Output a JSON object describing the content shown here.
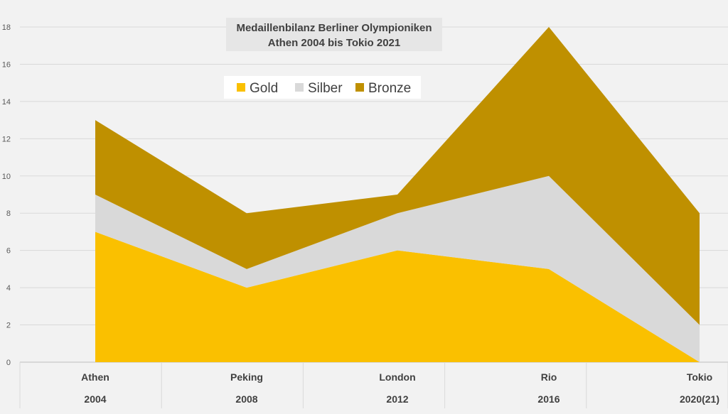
{
  "chart_data": {
    "type": "area",
    "stacked": true,
    "title_lines": [
      "Medaillenbilanz Berliner Olympioniken",
      "Athen 2004 bis Tokio 2021"
    ],
    "categories": [
      {
        "name": "Athen",
        "year": "2004"
      },
      {
        "name": "Peking",
        "year": "2008"
      },
      {
        "name": "London",
        "year": "2012"
      },
      {
        "name": "Rio",
        "year": "2016"
      },
      {
        "name": "Tokio",
        "year": "2020(21)"
      }
    ],
    "series": [
      {
        "name": "Gold",
        "color": "#fac000",
        "values": [
          7,
          4,
          6,
          5,
          0
        ]
      },
      {
        "name": "Silber",
        "color": "#d9d9d9",
        "values": [
          2,
          1,
          2,
          5,
          2
        ]
      },
      {
        "name": "Bronze",
        "color": "#bf9000",
        "values": [
          4,
          3,
          1,
          8,
          6
        ]
      }
    ],
    "ylim": [
      0,
      18
    ],
    "yticks": [
      0,
      2,
      4,
      6,
      8,
      10,
      12,
      14,
      16,
      18
    ],
    "grid": true,
    "legend_position": "top-left"
  }
}
